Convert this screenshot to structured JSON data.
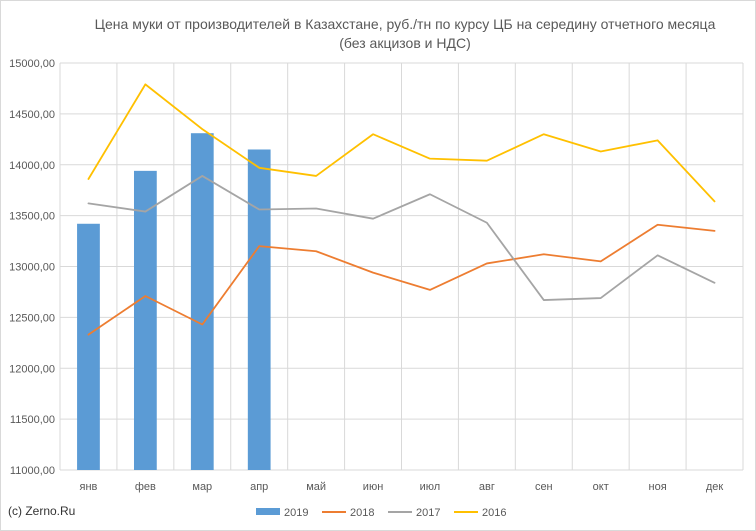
{
  "chart_data": {
    "type": "bar+line",
    "title": "Цена муки от производителей в Казахстане, руб./тн по курсу ЦБ на середину отчетного месяца",
    "subtitle": "(без акцизов и НДС)",
    "categories": [
      "янв",
      "фев",
      "мар",
      "апр",
      "май",
      "июн",
      "июл",
      "авг",
      "сен",
      "окт",
      "ноя",
      "дек"
    ],
    "y_ticks": [
      "11000,00",
      "11500,00",
      "12000,00",
      "12500,00",
      "13000,00",
      "13500,00",
      "14000,00",
      "14500,00",
      "15000,00"
    ],
    "ylim": [
      11000,
      15000
    ],
    "grid": true,
    "legend_position": "bottom",
    "series": [
      {
        "name": "2019",
        "type": "bar",
        "color": "#5b9bd5",
        "values": [
          13420,
          13940,
          14310,
          14150,
          null,
          null,
          null,
          null,
          null,
          null,
          null,
          null
        ]
      },
      {
        "name": "2018",
        "type": "line",
        "color": "#ed7d31",
        "values": [
          12330,
          12710,
          12430,
          13200,
          13150,
          12940,
          12770,
          13030,
          13120,
          13050,
          13410,
          13350
        ]
      },
      {
        "name": "2017",
        "type": "line",
        "color": "#a5a5a5",
        "values": [
          13620,
          13540,
          13890,
          13560,
          13570,
          13470,
          13710,
          13430,
          12670,
          12690,
          13110,
          12840
        ]
      },
      {
        "name": "2016",
        "type": "line",
        "color": "#ffc000",
        "values": [
          13860,
          14790,
          14350,
          13970,
          13890,
          14300,
          14060,
          14040,
          14300,
          14130,
          14240,
          13640
        ]
      }
    ]
  },
  "copyright": "(c) Zerno.Ru"
}
